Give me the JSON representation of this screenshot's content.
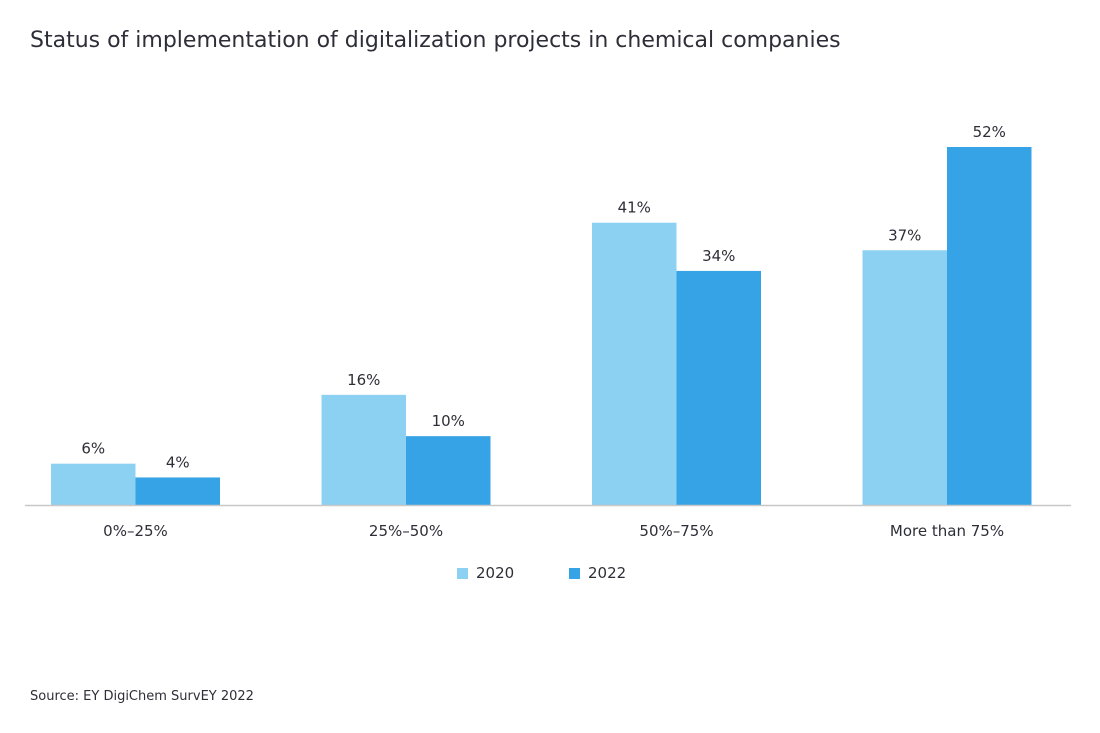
{
  "chart_data": {
    "type": "bar",
    "title": "Status of implementation of digitalization projects in chemical companies",
    "categories": [
      "0%–25%",
      "25%–50%",
      "50%–75%",
      "More than 75%"
    ],
    "series": [
      {
        "name": "2020",
        "values": [
          6,
          16,
          41,
          37
        ],
        "color": "#8cd1f1"
      },
      {
        "name": "2022",
        "values": [
          4,
          10,
          34,
          52
        ],
        "color": "#35a3e5"
      }
    ],
    "value_labels": [
      [
        "6%",
        "16%",
        "41%",
        "37%"
      ],
      [
        "4%",
        "10%",
        "34%",
        "52%"
      ]
    ],
    "xlabel": "",
    "ylabel": "",
    "ylim": [
      0,
      52
    ],
    "grid": false,
    "legend_placement": "bottom-center"
  },
  "source": "Source: EY DigiChem SurvEY 2022"
}
